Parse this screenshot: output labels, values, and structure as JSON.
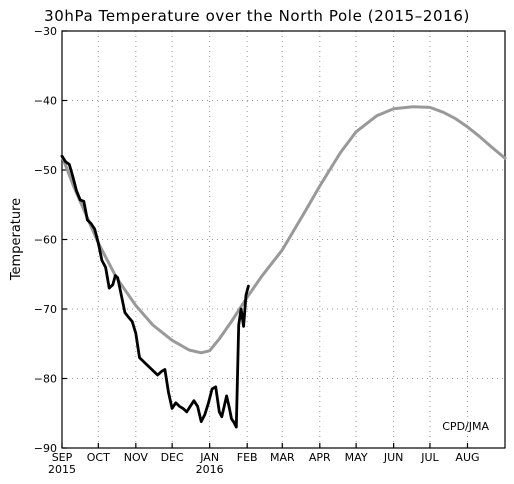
{
  "chart_data": {
    "type": "line",
    "title": "30hPa Temperature over the North Pole (2015–2016)",
    "xlabel": "",
    "ylabel": "Temperature",
    "ylim": [
      -90,
      -30
    ],
    "y_ticks": [
      -90,
      -80,
      -70,
      -60,
      -50,
      -40,
      -30
    ],
    "x_domain_days": [
      0,
      366
    ],
    "x_ticks": [
      {
        "day": 0,
        "label": "SEP",
        "sublabel": "2015"
      },
      {
        "day": 30,
        "label": "OCT",
        "sublabel": ""
      },
      {
        "day": 61,
        "label": "NOV",
        "sublabel": ""
      },
      {
        "day": 91,
        "label": "DEC",
        "sublabel": ""
      },
      {
        "day": 122,
        "label": "JAN",
        "sublabel": "2016"
      },
      {
        "day": 153,
        "label": "FEB",
        "sublabel": ""
      },
      {
        "day": 182,
        "label": "MAR",
        "sublabel": ""
      },
      {
        "day": 213,
        "label": "APR",
        "sublabel": ""
      },
      {
        "day": 243,
        "label": "MAY",
        "sublabel": ""
      },
      {
        "day": 274,
        "label": "JUN",
        "sublabel": ""
      },
      {
        "day": 304,
        "label": "JUL",
        "sublabel": ""
      },
      {
        "day": 335,
        "label": "AUG",
        "sublabel": ""
      }
    ],
    "grid": true,
    "credit": "CPD/JMA",
    "series": [
      {
        "color": "#999999",
        "x": [
          0,
          10,
          20,
          30,
          45,
          61,
          75,
          91,
          105,
          115,
          122,
          130,
          140,
          153,
          165,
          182,
          200,
          213,
          230,
          243,
          260,
          274,
          290,
          304,
          315,
          325,
          335,
          345,
          355,
          366
        ],
        "y": [
          -48,
          -52.5,
          -56.5,
          -60.5,
          -65.5,
          -69.5,
          -72.3,
          -74.5,
          -75.9,
          -76.3,
          -76,
          -74.3,
          -71.8,
          -68.3,
          -65.3,
          -61.5,
          -56.2,
          -52.3,
          -47.5,
          -44.5,
          -42.2,
          -41.2,
          -40.9,
          -41,
          -41.7,
          -42.6,
          -43.8,
          -45.2,
          -46.7,
          -48.3
        ]
      },
      {
        "color": "#000000",
        "x": [
          0,
          3,
          6,
          9,
          12,
          15,
          18,
          21,
          24,
          27,
          30,
          33,
          36,
          39,
          42,
          44,
          46,
          49,
          52,
          55,
          58,
          61,
          64,
          67,
          70,
          73,
          76,
          79,
          82,
          85,
          88,
          91,
          94,
          97,
          100,
          103,
          106,
          109,
          112,
          115,
          118,
          121,
          124,
          127,
          130,
          132,
          134,
          136,
          138,
          140,
          142,
          144,
          146,
          148,
          150,
          152,
          154
        ],
        "y": [
          -48,
          -48.8,
          -49.2,
          -51,
          -53,
          -54.3,
          -54.5,
          -57.2,
          -57.7,
          -58.5,
          -60.5,
          -63,
          -64,
          -67,
          -66.5,
          -65.2,
          -65.5,
          -68,
          -70.5,
          -71.2,
          -71.8,
          -73.5,
          -77,
          -77.5,
          -78,
          -78.5,
          -79,
          -79.5,
          -79,
          -78.7,
          -82,
          -84.3,
          -83.5,
          -84,
          -84.3,
          -84.8,
          -84,
          -83.2,
          -84,
          -86.2,
          -85.2,
          -83.5,
          -81.5,
          -81.2,
          -84.8,
          -85.5,
          -84,
          -82.5,
          -84,
          -85.8,
          -86.3,
          -87,
          -72.3,
          -70,
          -72.5,
          -68,
          -66.7
        ]
      }
    ]
  }
}
